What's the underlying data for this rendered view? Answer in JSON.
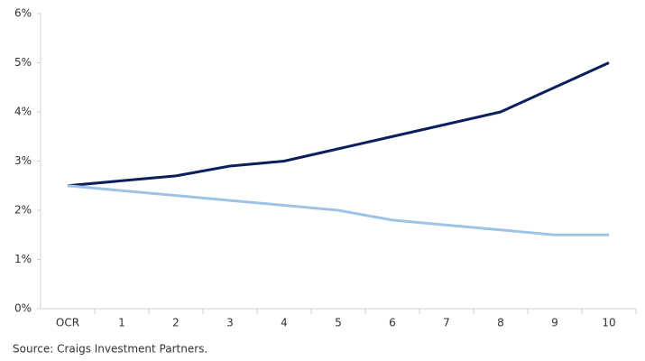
{
  "chart_data": {
    "type": "line",
    "categories": [
      "OCR",
      "1",
      "2",
      "3",
      "4",
      "5",
      "6",
      "7",
      "8",
      "9",
      "10"
    ],
    "series": [
      {
        "color": "#0b1f5c",
        "values": [
          2.5,
          2.6,
          2.7,
          2.9,
          3.0,
          3.25,
          3.5,
          3.75,
          4.0,
          4.5,
          5.0
        ]
      },
      {
        "color": "#9dc3e6",
        "values": [
          2.5,
          2.4,
          2.3,
          2.2,
          2.1,
          2.0,
          1.8,
          1.7,
          1.6,
          1.5,
          1.5
        ]
      }
    ],
    "ylim": [
      0,
      6
    ],
    "yticks": [
      {
        "value": 0,
        "label": "0%"
      },
      {
        "value": 1,
        "label": "1%"
      },
      {
        "value": 2,
        "label": "2%"
      },
      {
        "value": 3,
        "label": "3%"
      },
      {
        "value": 4,
        "label": "4%"
      },
      {
        "value": 5,
        "label": "5%"
      },
      {
        "value": 6,
        "label": "6%"
      }
    ],
    "grid": false,
    "source": "Source: Craigs Investment Partners."
  }
}
